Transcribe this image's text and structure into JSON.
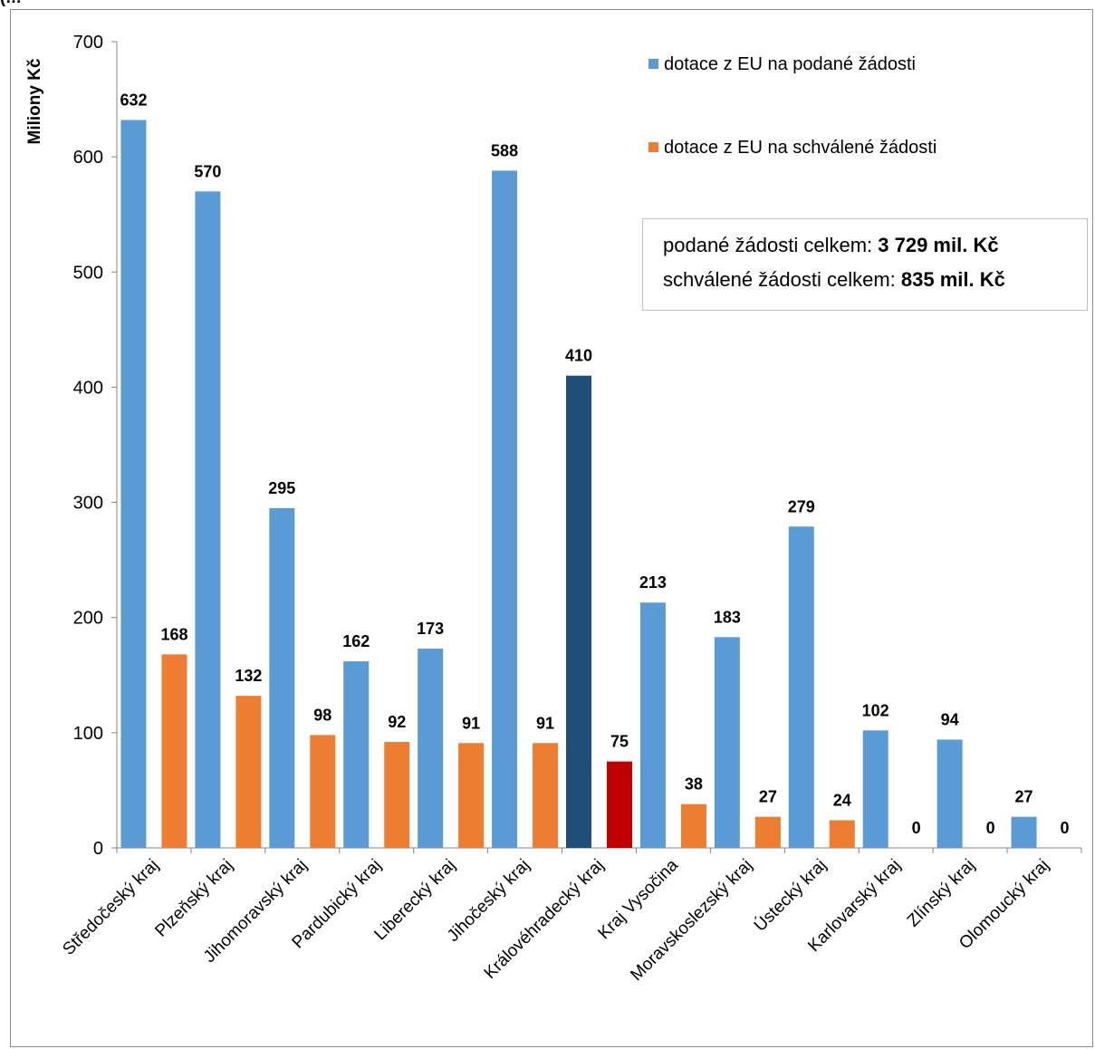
{
  "corner_caption": "(…",
  "totals": {
    "submitted_label": "podané žádosti celkem:",
    "submitted_value": "3 729 mil. Kč",
    "approved_label": "schválené žádosti celkem:",
    "approved_value": "835 mil. Kč"
  },
  "chart_data": {
    "type": "bar",
    "ylabel": "Miliony Kč",
    "ylim": [
      0,
      700
    ],
    "yticks": [
      0,
      100,
      200,
      300,
      400,
      500,
      600,
      700
    ],
    "grid": false,
    "legend_position": "top-right",
    "categories": [
      "Středočeský kraj",
      "Plzeňský kraj",
      "Jihomoravský kraj",
      "Pardubický kraj",
      "Liberecký kraj",
      "Jihočeský kraj",
      "Královéhradecký kraj",
      "Kraj Vysočina",
      "Moravskoslezský kraj",
      "Ústecký kraj",
      "Karlovarský kraj",
      "Zlínský kraj",
      "Olomoucký kraj"
    ],
    "highlight_category": "Královéhradecký kraj",
    "series": [
      {
        "name": "dotace z EU na podané žádosti",
        "color": "#5b9bd5",
        "highlight_color": "#1f4e79",
        "values": [
          632,
          570,
          295,
          162,
          173,
          588,
          410,
          213,
          183,
          279,
          102,
          94,
          27
        ]
      },
      {
        "name": "dotace z EU na schválené žádosti",
        "color": "#ed7d31",
        "highlight_color": "#c00000",
        "values": [
          168,
          132,
          98,
          92,
          91,
          91,
          75,
          38,
          27,
          24,
          0,
          0,
          0
        ]
      }
    ]
  }
}
